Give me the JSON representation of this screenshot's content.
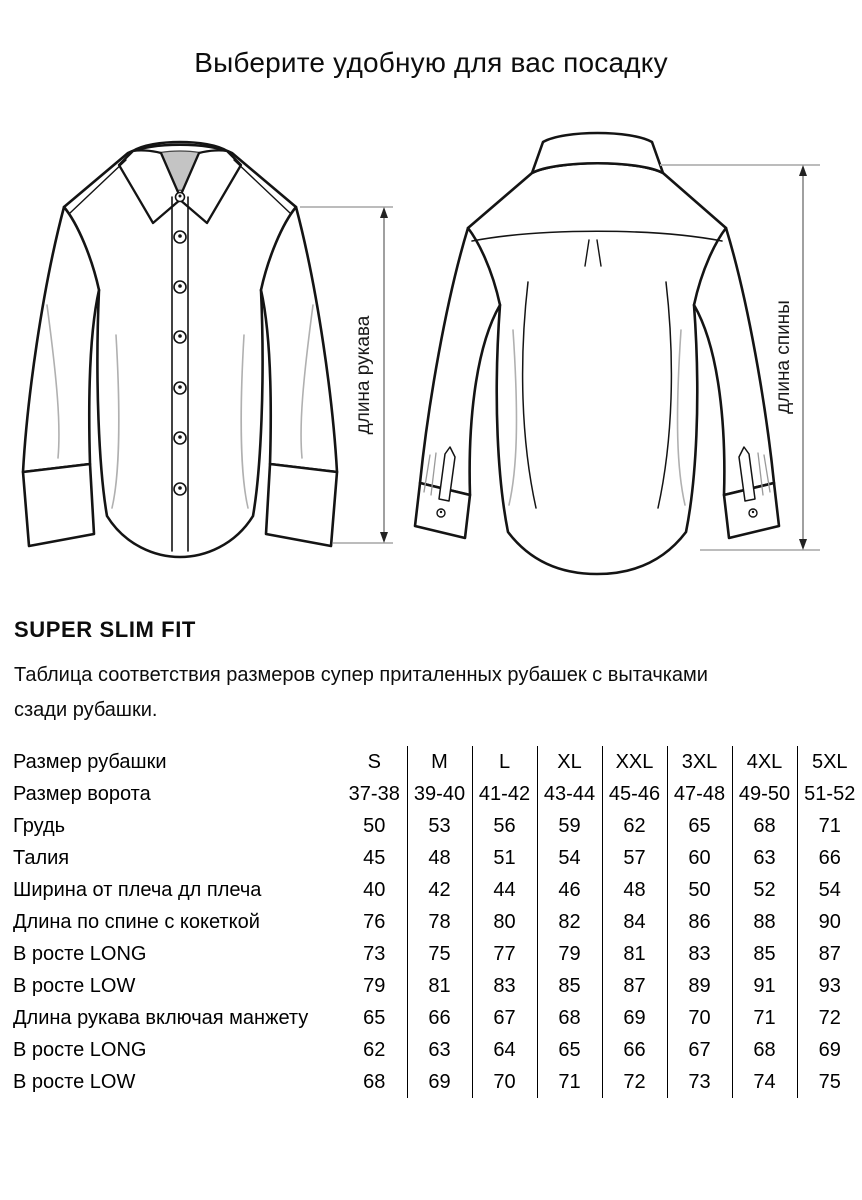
{
  "page": {
    "title": "Выберите удобную для вас посадку"
  },
  "figure": {
    "front_view": "shirt-front-technical-drawing",
    "back_view": "shirt-back-technical-drawing",
    "sleeve_length_label": "длина рукава",
    "back_length_label": "длина спины"
  },
  "section": {
    "heading": "SUPER SLIM FIT",
    "description_line1": "Таблица соответствия размеров супер приталенных рубашек с вытачками",
    "description_line2": "сзади рубашки."
  },
  "table": {
    "rows": [
      {
        "label": "Размер рубашки",
        "values": [
          "S",
          "M",
          "L",
          "XL",
          "XXL",
          "3XL",
          "4XL",
          "5XL"
        ]
      },
      {
        "label": "Размер ворота",
        "values": [
          "37-38",
          "39-40",
          "41-42",
          "43-44",
          "45-46",
          "47-48",
          "49-50",
          "51-52"
        ]
      },
      {
        "label": "Грудь",
        "values": [
          "50",
          "53",
          "56",
          "59",
          "62",
          "65",
          "68",
          "71"
        ]
      },
      {
        "label": "Талия",
        "values": [
          "45",
          "48",
          "51",
          "54",
          "57",
          "60",
          "63",
          "66"
        ]
      },
      {
        "label": "Ширина от плеча дл плеча",
        "values": [
          "40",
          "42",
          "44",
          "46",
          "48",
          "50",
          "52",
          "54"
        ]
      },
      {
        "label": "Длина по спине с кокеткой",
        "values": [
          "76",
          "78",
          "80",
          "82",
          "84",
          "86",
          "88",
          "90"
        ]
      },
      {
        "label": "В росте LONG",
        "values": [
          "73",
          "75",
          "77",
          "79",
          "81",
          "83",
          "85",
          "87"
        ]
      },
      {
        "label": "В росте LOW",
        "values": [
          "79",
          "81",
          "83",
          "85",
          "87",
          "89",
          "91",
          "93"
        ]
      },
      {
        "label": "Длина рукава включая манжету",
        "values": [
          "65",
          "66",
          "67",
          "68",
          "69",
          "70",
          "71",
          "72"
        ]
      },
      {
        "label": "В росте LONG",
        "values": [
          "62",
          "63",
          "64",
          "65",
          "66",
          "67",
          "68",
          "69"
        ]
      },
      {
        "label": "В росте LOW",
        "values": [
          "68",
          "69",
          "70",
          "71",
          "72",
          "73",
          "74",
          "75"
        ]
      }
    ]
  },
  "colors": {
    "background": "#ffffff",
    "line_art": "#141414",
    "collar_shade": "#c4c4c4",
    "measure_tick": "#b3b3b3",
    "measure_line": "#777777",
    "text": "#0d0d0d"
  }
}
